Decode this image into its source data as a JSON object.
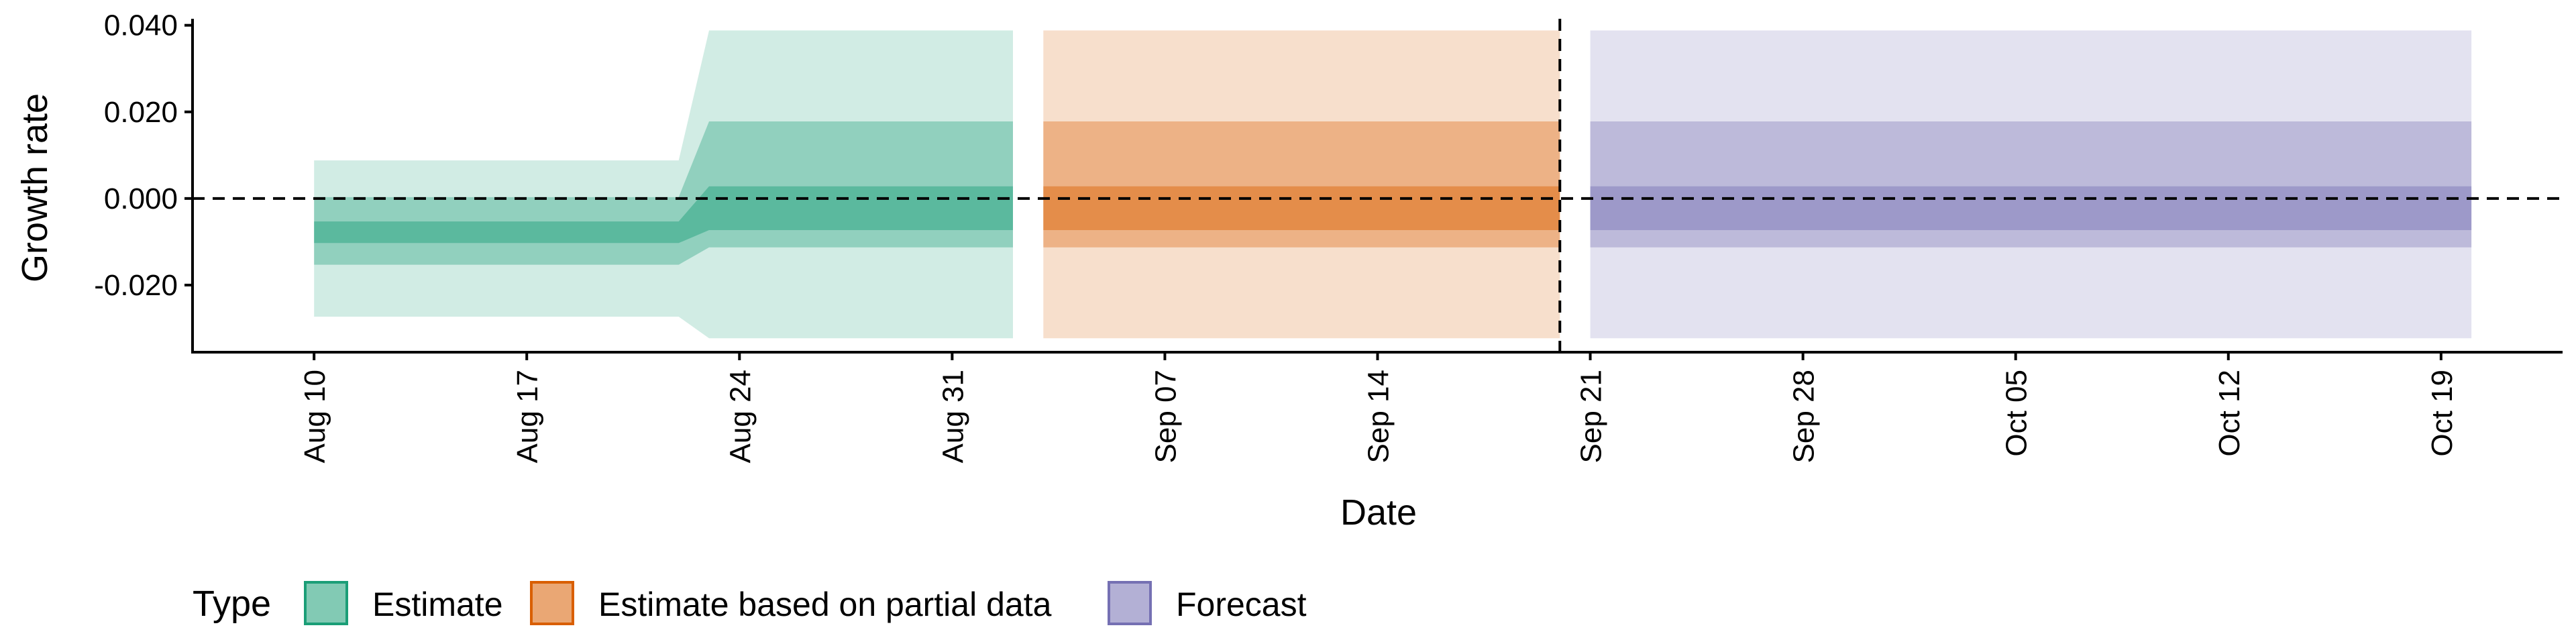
{
  "chart_data": {
    "type": "area",
    "title": "",
    "xlabel": "Date",
    "ylabel": "Growth rate",
    "x_ticks": [
      "Aug 10",
      "Aug 17",
      "Aug 24",
      "Aug 31",
      "Sep 07",
      "Sep 14",
      "Sep 21",
      "Sep 28",
      "Oct 05",
      "Oct 12",
      "Oct 19"
    ],
    "y_ticks": [
      "0.040",
      "0.020",
      "0.000",
      "-0.020"
    ],
    "y_tick_values": [
      0.04,
      0.02,
      0.0,
      -0.02
    ],
    "xlim": [
      "2020-08-06",
      "2020-10-23"
    ],
    "ylim": [
      -0.0355,
      0.0415
    ],
    "reference_lines": [
      {
        "axis": "y",
        "value": 0.0,
        "style": "dashed"
      },
      {
        "axis": "x",
        "value": "2020-09-20",
        "style": "dashed"
      }
    ],
    "legend": {
      "title": "Type",
      "position": "bottom-left",
      "items": [
        "Estimate",
        "Estimate based on partial data",
        "Forecast"
      ]
    },
    "series": [
      {
        "name": "Estimate",
        "color": "#1b9e77",
        "points": [
          {
            "date": "2020-08-10",
            "lower_90": -0.0273,
            "lower_50": -0.0153,
            "lower_20": -0.0103,
            "upper_20": -0.0053,
            "upper_50": 0.0003,
            "upper_90": 0.0088
          },
          {
            "date": "2020-08-22",
            "lower_90": -0.0273,
            "lower_50": -0.0153,
            "lower_20": -0.0103,
            "upper_20": -0.0053,
            "upper_50": 0.0003,
            "upper_90": 0.0088
          },
          {
            "date": "2020-08-23",
            "lower_90": -0.0323,
            "lower_50": -0.0113,
            "lower_20": -0.0073,
            "upper_20": 0.0028,
            "upper_50": 0.0178,
            "upper_90": 0.0388
          },
          {
            "date": "2020-09-02",
            "lower_90": -0.0323,
            "lower_50": -0.0113,
            "lower_20": -0.0073,
            "upper_20": 0.0028,
            "upper_50": 0.0178,
            "upper_90": 0.0388
          }
        ]
      },
      {
        "name": "Estimate based on partial data",
        "color": "#d95f02",
        "points": [
          {
            "date": "2020-09-03",
            "lower_90": -0.0323,
            "lower_50": -0.0113,
            "lower_20": -0.0073,
            "upper_20": 0.0028,
            "upper_50": 0.0178,
            "upper_90": 0.0388
          },
          {
            "date": "2020-09-20",
            "lower_90": -0.0323,
            "lower_50": -0.0113,
            "lower_20": -0.0073,
            "upper_20": 0.0028,
            "upper_50": 0.0178,
            "upper_90": 0.0388
          }
        ]
      },
      {
        "name": "Forecast",
        "color": "#7570b3",
        "points": [
          {
            "date": "2020-09-21",
            "lower_90": -0.0323,
            "lower_50": -0.0113,
            "lower_20": -0.0073,
            "upper_20": 0.0028,
            "upper_50": 0.0178,
            "upper_90": 0.0388
          },
          {
            "date": "2020-10-20",
            "lower_90": -0.0323,
            "lower_50": -0.0113,
            "lower_20": -0.0073,
            "upper_20": 0.0028,
            "upper_50": 0.0178,
            "upper_90": 0.0388
          }
        ]
      }
    ]
  }
}
